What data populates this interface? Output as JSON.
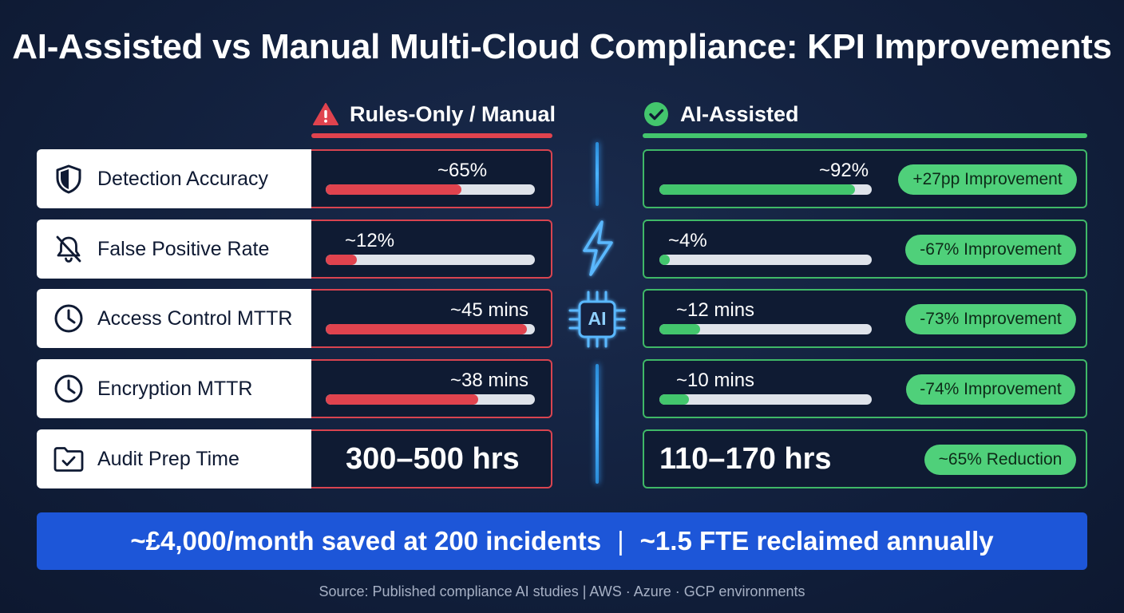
{
  "title": "AI-Assisted vs Manual Multi-Cloud Compliance: KPI Improvements",
  "columns": {
    "manual": {
      "label": "Rules-Only / Manual",
      "icon": "warning-icon",
      "color": "#e0434e"
    },
    "ai": {
      "label": "AI-Assisted",
      "icon": "check-circle-icon",
      "color": "#43c66d"
    }
  },
  "center_badge": {
    "label": "AI",
    "icons": [
      "lightning-icon",
      "ai-chip-icon"
    ]
  },
  "rows": [
    {
      "label": "Detection Accuracy",
      "icon": "shield-icon",
      "manual": {
        "value": "~65%",
        "fraction": 0.65
      },
      "ai": {
        "value": "~92%",
        "fraction": 0.92
      },
      "badge": "+27pp Improvement"
    },
    {
      "label": "False Positive Rate",
      "icon": "bell-off-icon",
      "manual": {
        "value": "~12%",
        "fraction": 0.15
      },
      "ai": {
        "value": "~4%",
        "fraction": 0.05
      },
      "badge": "-67% Improvement"
    },
    {
      "label": "Access Control MTTR",
      "icon": "clock-icon",
      "manual": {
        "value": "~45 mins",
        "fraction": 0.96
      },
      "ai": {
        "value": "~12 mins",
        "fraction": 0.19
      },
      "badge": "-73% Improvement"
    },
    {
      "label": "Encryption MTTR",
      "icon": "clock-icon",
      "manual": {
        "value": "~38 mins",
        "fraction": 0.73
      },
      "ai": {
        "value": "~10 mins",
        "fraction": 0.14
      },
      "badge": "-74% Improvement"
    },
    {
      "label": "Audit Prep Time",
      "icon": "folder-check-icon",
      "manual": {
        "value": "300–500 hrs"
      },
      "ai": {
        "value": "110–170 hrs"
      },
      "badge": "~65% Reduction"
    }
  ],
  "banner": {
    "left": "~£4,000/month saved at 200 incidents",
    "separator": "|",
    "right": "~1.5 FTE reclaimed annually"
  },
  "source": "Source: Published compliance AI studies | AWS · Azure · GCP environments"
}
